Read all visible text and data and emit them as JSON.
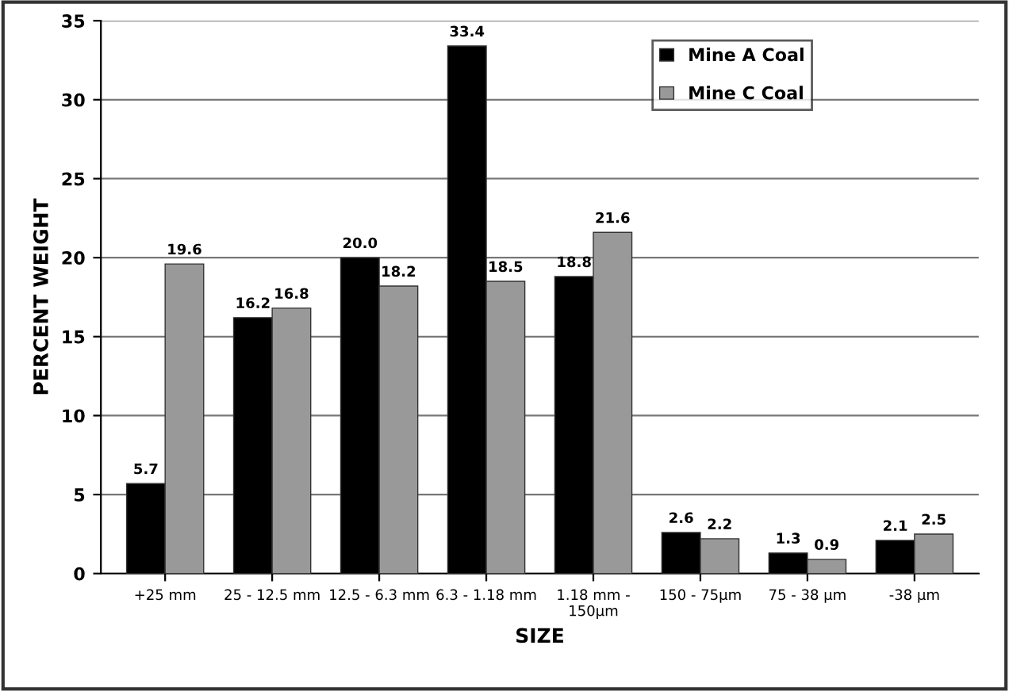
{
  "chart_data": {
    "type": "bar",
    "xlabel": "SIZE",
    "ylabel": "PERCENT WEIGHT",
    "categories": [
      "+25 mm",
      "25 - 12.5 mm",
      "12.5 - 6.3 mm",
      "6.3 - 1.18 mm",
      "1.18 mm -\n150μm",
      "150 - 75μm",
      "75 - 38 μm",
      "-38 μm"
    ],
    "series": [
      {
        "name": "Mine A Coal",
        "color": "#000000",
        "values": [
          5.7,
          16.2,
          20.0,
          33.4,
          18.8,
          2.6,
          1.3,
          2.1
        ],
        "value_labels": [
          "5.7",
          "16.2",
          "20.0",
          "33.4",
          "18.8",
          "2.6",
          "1.3",
          "2.1"
        ]
      },
      {
        "name": "Mine C Coal",
        "color": "#999999",
        "values": [
          19.6,
          16.8,
          18.2,
          18.5,
          21.6,
          2.2,
          0.9,
          2.5
        ],
        "value_labels": [
          "19.6",
          "16.8",
          "18.2",
          "18.5",
          "21.6",
          "2.2",
          "0.9",
          "2.5"
        ]
      }
    ],
    "ylim": [
      0,
      35
    ],
    "yticks": [
      0,
      5,
      10,
      15,
      20,
      25,
      30,
      35
    ],
    "grid": "y",
    "legend": "top right"
  }
}
